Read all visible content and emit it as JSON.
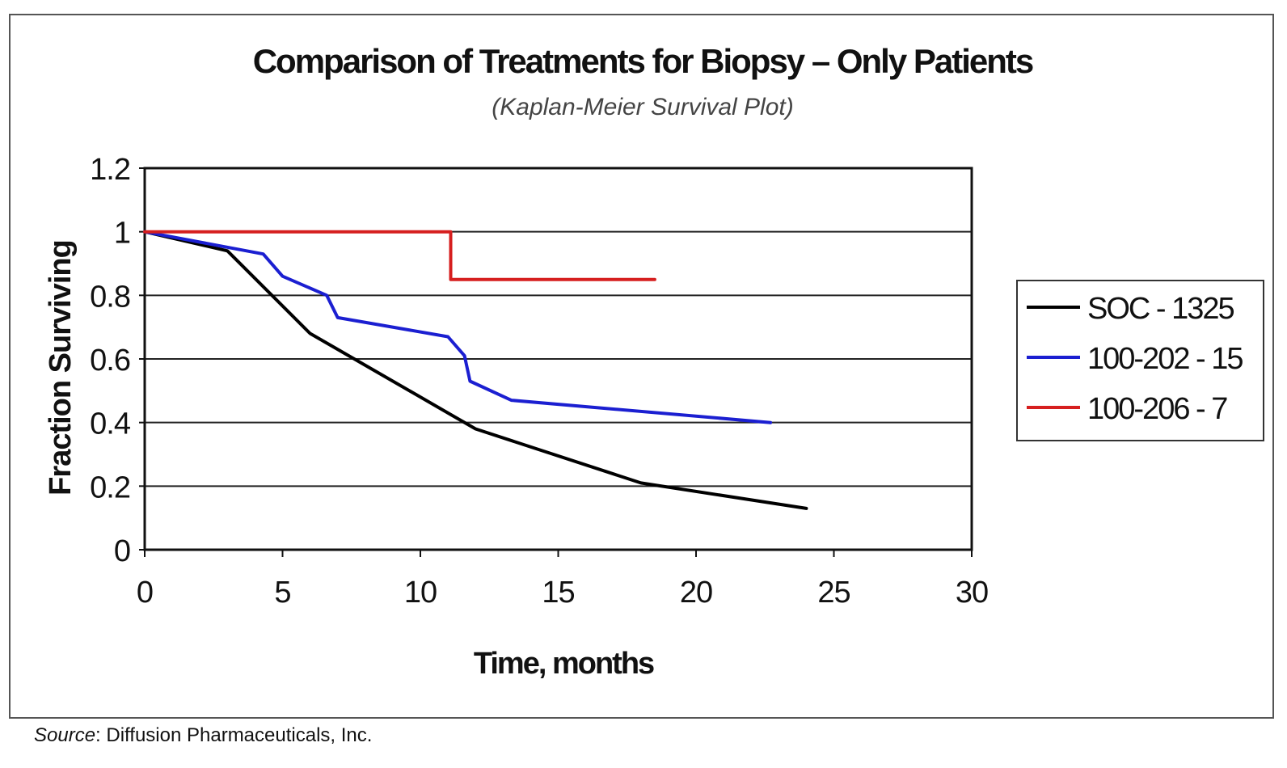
{
  "chart_data": {
    "type": "line",
    "title": "Comparison of Treatments for Biopsy – Only Patients",
    "subtitle": "(Kaplan-Meier Survival Plot)",
    "xlabel": "Time, months",
    "ylabel": "Fraction Surviving",
    "xlim": [
      0,
      30
    ],
    "ylim": [
      0,
      1.2
    ],
    "x_ticks": [
      "0",
      "5",
      "10",
      "15",
      "20",
      "25",
      "30"
    ],
    "y_ticks": [
      "0",
      "0.2",
      "0.4",
      "0.6",
      "0.8",
      "1",
      "1.2"
    ],
    "grid": "horizontal",
    "legend_position": "right",
    "series": [
      {
        "name": "SOC - 1325",
        "color": "#000000",
        "points": [
          [
            0,
            1.0
          ],
          [
            3,
            0.94
          ],
          [
            6,
            0.68
          ],
          [
            12,
            0.38
          ],
          [
            18,
            0.21
          ],
          [
            24,
            0.13
          ]
        ]
      },
      {
        "name": "100-202 - 15",
        "color": "#1b1fd1",
        "points": [
          [
            0,
            1.0
          ],
          [
            4.3,
            0.93
          ],
          [
            5,
            0.86
          ],
          [
            6.6,
            0.8
          ],
          [
            7,
            0.73
          ],
          [
            11,
            0.67
          ],
          [
            11.6,
            0.61
          ],
          [
            11.8,
            0.53
          ],
          [
            13.3,
            0.47
          ],
          [
            22.7,
            0.4
          ]
        ]
      },
      {
        "name": "100-206 - 7",
        "color": "#d61f1f",
        "points": [
          [
            0,
            1.0
          ],
          [
            11.1,
            1.0
          ],
          [
            11.1,
            0.85
          ],
          [
            18.5,
            0.85
          ]
        ]
      }
    ]
  },
  "source": {
    "label": "Source",
    "text": ": Diffusion Pharmaceuticals, Inc."
  }
}
